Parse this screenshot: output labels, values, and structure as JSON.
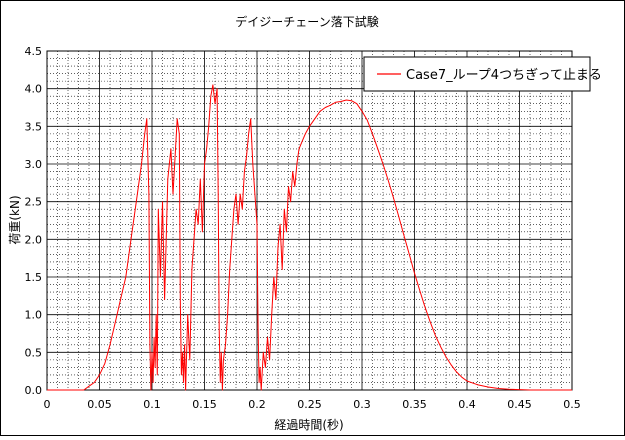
{
  "chart_data": {
    "type": "line",
    "title": "デイジーチェーン落下試験",
    "xlabel": "経過時間(秒)",
    "ylabel": "荷重(kN)",
    "xlim": [
      0,
      0.5
    ],
    "ylim": [
      0,
      4.5
    ],
    "x_ticks": [
      "0",
      "0.05",
      "0.1",
      "0.15",
      "0.2",
      "0.25",
      "0.3",
      "0.35",
      "0.4",
      "0.45",
      "0.5"
    ],
    "y_ticks": [
      "0.0",
      "0.5",
      "1.0",
      "1.5",
      "2.0",
      "2.5",
      "3.0",
      "3.5",
      "4.0",
      "4.5"
    ],
    "grid": "major solid, minor dotted",
    "legend_position": "top-right",
    "series": [
      {
        "name": "Case7_ループ4つちぎって止まる",
        "color": "#ff0000",
        "points": [
          [
            0.0,
            0.0
          ],
          [
            0.035,
            0.0
          ],
          [
            0.04,
            0.05
          ],
          [
            0.045,
            0.1
          ],
          [
            0.05,
            0.2
          ],
          [
            0.055,
            0.35
          ],
          [
            0.06,
            0.6
          ],
          [
            0.065,
            0.9
          ],
          [
            0.07,
            1.2
          ],
          [
            0.075,
            1.5
          ],
          [
            0.08,
            2.0
          ],
          [
            0.085,
            2.5
          ],
          [
            0.09,
            3.0
          ],
          [
            0.093,
            3.4
          ],
          [
            0.095,
            3.6
          ],
          [
            0.097,
            2.6
          ],
          [
            0.098,
            0.6
          ],
          [
            0.099,
            0.0
          ],
          [
            0.1,
            0.5
          ],
          [
            0.101,
            0.1
          ],
          [
            0.102,
            0.7
          ],
          [
            0.103,
            0.3
          ],
          [
            0.104,
            1.0
          ],
          [
            0.105,
            0.2
          ],
          [
            0.106,
            2.4
          ],
          [
            0.108,
            1.5
          ],
          [
            0.11,
            2.5
          ],
          [
            0.112,
            1.2
          ],
          [
            0.115,
            2.8
          ],
          [
            0.118,
            3.2
          ],
          [
            0.12,
            2.6
          ],
          [
            0.122,
            3.1
          ],
          [
            0.124,
            3.6
          ],
          [
            0.126,
            3.4
          ],
          [
            0.127,
            1.2
          ],
          [
            0.128,
            0.2
          ],
          [
            0.129,
            0.5
          ],
          [
            0.13,
            0.1
          ],
          [
            0.131,
            0.6
          ],
          [
            0.132,
            0.0
          ],
          [
            0.134,
            1.0
          ],
          [
            0.136,
            0.4
          ],
          [
            0.138,
            1.6
          ],
          [
            0.14,
            2.0
          ],
          [
            0.142,
            2.4
          ],
          [
            0.144,
            2.2
          ],
          [
            0.146,
            2.8
          ],
          [
            0.148,
            2.1
          ],
          [
            0.15,
            3.0
          ],
          [
            0.152,
            3.2
          ],
          [
            0.154,
            3.5
          ],
          [
            0.156,
            3.9
          ],
          [
            0.158,
            4.05
          ],
          [
            0.16,
            3.8
          ],
          [
            0.162,
            4.0
          ],
          [
            0.163,
            2.6
          ],
          [
            0.164,
            0.8
          ],
          [
            0.165,
            0.1
          ],
          [
            0.166,
            0.5
          ],
          [
            0.167,
            0.0
          ],
          [
            0.168,
            0.4
          ],
          [
            0.17,
            0.6
          ],
          [
            0.172,
            1.0
          ],
          [
            0.174,
            1.6
          ],
          [
            0.176,
            2.0
          ],
          [
            0.178,
            2.4
          ],
          [
            0.18,
            2.6
          ],
          [
            0.182,
            2.2
          ],
          [
            0.184,
            2.6
          ],
          [
            0.186,
            2.4
          ],
          [
            0.188,
            2.9
          ],
          [
            0.19,
            3.1
          ],
          [
            0.192,
            3.4
          ],
          [
            0.194,
            3.6
          ],
          [
            0.196,
            3.0
          ],
          [
            0.198,
            2.6
          ],
          [
            0.2,
            2.2
          ],
          [
            0.201,
            0.8
          ],
          [
            0.202,
            0.1
          ],
          [
            0.203,
            0.3
          ],
          [
            0.204,
            0.0
          ],
          [
            0.206,
            0.5
          ],
          [
            0.208,
            0.3
          ],
          [
            0.21,
            0.7
          ],
          [
            0.212,
            0.4
          ],
          [
            0.214,
            1.0
          ],
          [
            0.216,
            1.5
          ],
          [
            0.218,
            1.2
          ],
          [
            0.22,
            1.9
          ],
          [
            0.222,
            2.2
          ],
          [
            0.224,
            1.6
          ],
          [
            0.226,
            2.4
          ],
          [
            0.228,
            2.1
          ],
          [
            0.23,
            2.7
          ],
          [
            0.232,
            2.5
          ],
          [
            0.234,
            2.9
          ],
          [
            0.236,
            2.7
          ],
          [
            0.238,
            3.0
          ],
          [
            0.24,
            3.2
          ],
          [
            0.243,
            3.3
          ],
          [
            0.246,
            3.4
          ],
          [
            0.25,
            3.5
          ],
          [
            0.255,
            3.6
          ],
          [
            0.26,
            3.7
          ],
          [
            0.265,
            3.75
          ],
          [
            0.27,
            3.78
          ],
          [
            0.275,
            3.82
          ],
          [
            0.28,
            3.83
          ],
          [
            0.285,
            3.85
          ],
          [
            0.29,
            3.84
          ],
          [
            0.295,
            3.8
          ],
          [
            0.3,
            3.7
          ],
          [
            0.305,
            3.58
          ],
          [
            0.31,
            3.4
          ],
          [
            0.315,
            3.2
          ],
          [
            0.32,
            3.0
          ],
          [
            0.325,
            2.78
          ],
          [
            0.33,
            2.55
          ],
          [
            0.335,
            2.3
          ],
          [
            0.34,
            2.05
          ],
          [
            0.345,
            1.8
          ],
          [
            0.35,
            1.55
          ],
          [
            0.355,
            1.32
          ],
          [
            0.36,
            1.1
          ],
          [
            0.365,
            0.9
          ],
          [
            0.37,
            0.72
          ],
          [
            0.375,
            0.57
          ],
          [
            0.38,
            0.44
          ],
          [
            0.385,
            0.33
          ],
          [
            0.39,
            0.24
          ],
          [
            0.395,
            0.17
          ],
          [
            0.4,
            0.12
          ],
          [
            0.41,
            0.07
          ],
          [
            0.42,
            0.04
          ],
          [
            0.43,
            0.02
          ],
          [
            0.44,
            0.01
          ],
          [
            0.46,
            0.0
          ],
          [
            0.5,
            0.0
          ]
        ]
      }
    ]
  }
}
